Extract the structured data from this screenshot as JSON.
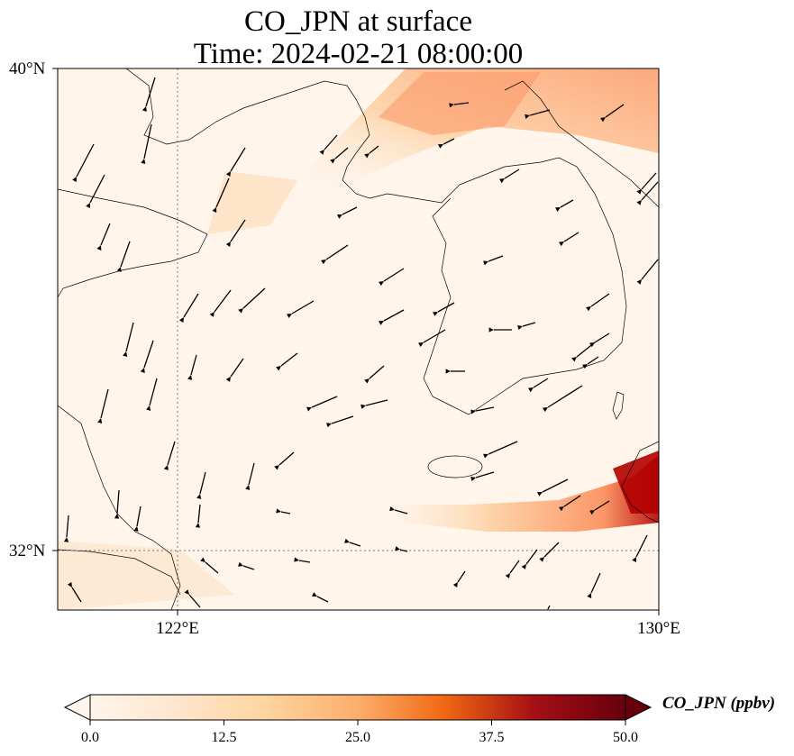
{
  "title": {
    "line1": "CO_JPN at surface",
    "line2": "Time: 2024-02-21 08:00:00"
  },
  "axes": {
    "lat_ticks": [
      {
        "value": 40,
        "label": "40°N"
      },
      {
        "value": 32,
        "label": "32°N"
      }
    ],
    "lon_ticks": [
      {
        "value": 122,
        "label": "122°E"
      },
      {
        "value": 130,
        "label": "130°E"
      }
    ],
    "gridlines": "dotted"
  },
  "map": {
    "extent": {
      "lon_min": 120,
      "lon_max": 130,
      "lat_min": 31,
      "lat_max": 40
    },
    "variable": "CO_JPN",
    "level": "surface",
    "wind_vectors": "shown"
  },
  "colorbar": {
    "label": "CO_JPN (ppbv)",
    "min": 0.0,
    "max": 50.0,
    "extend": "both",
    "tick_labels": [
      "0.0",
      "12.5",
      "25.0",
      "37.5",
      "50.0"
    ],
    "colors": [
      "#fff5eb",
      "#fdd49e",
      "#fdae6b",
      "#f16913",
      "#d7301f",
      "#a50f15",
      "#67000d"
    ]
  }
}
